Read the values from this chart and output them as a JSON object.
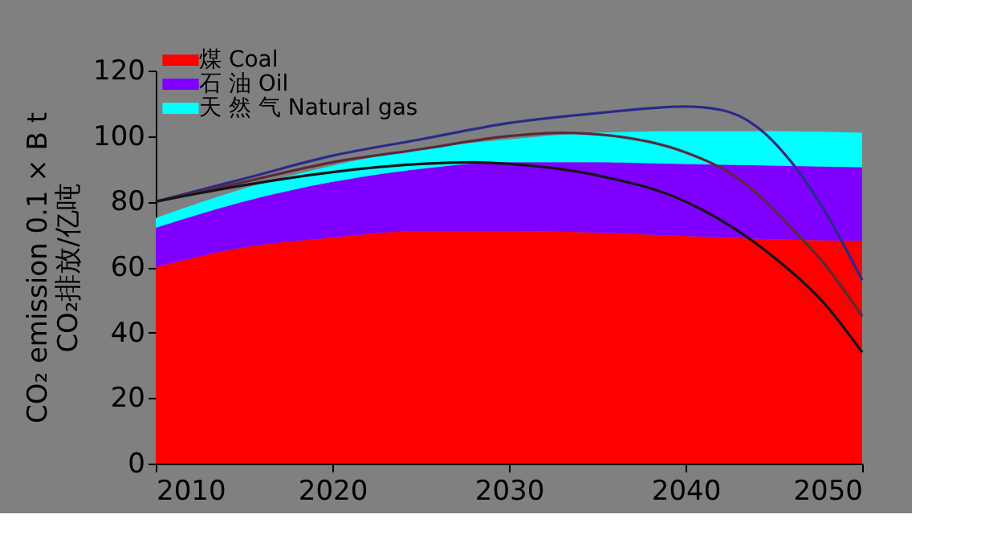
{
  "chart_data": {
    "type": "area",
    "stacked": true,
    "ylabel": "CO₂ emission 0.1 × B t\nCO₂排放/亿吨",
    "x": [
      2010,
      2015,
      2020,
      2025,
      2030,
      2035,
      2040,
      2045,
      2050
    ],
    "xlim": [
      2010,
      2050
    ],
    "xticks": [
      2010,
      2020,
      2030,
      2040,
      2050
    ],
    "ylim": [
      0,
      120
    ],
    "yticks": [
      0,
      20,
      40,
      60,
      80,
      100,
      120
    ],
    "grid": false,
    "legend": "top left",
    "series": [
      {
        "name": "煤   Coal",
        "color": "#ff0000",
        "values": [
          60,
          66,
          69,
          71,
          71,
          70.5,
          69.5,
          68.5,
          68
        ]
      },
      {
        "name": "石 油   Oil",
        "color": "#7f00ff",
        "values": [
          12,
          14,
          17,
          19,
          21,
          21.5,
          22,
          22.5,
          22.5
        ]
      },
      {
        "name": "天 然 气  Natural gas",
        "color": "#00ffff",
        "values": [
          3,
          4,
          5,
          6,
          7,
          9,
          10,
          10.5,
          10.5
        ]
      },
      {
        "type": "line",
        "color": "#2a2a8a",
        "x": [
          2010,
          2015,
          2020,
          2025,
          2030,
          2035,
          2040,
          2042,
          2044,
          2046,
          2048,
          2050
        ],
        "values": [
          80,
          87,
          94,
          99,
          104,
          107,
          109,
          108,
          103,
          92,
          76,
          56
        ]
      },
      {
        "type": "line",
        "color": "#5a2a3a",
        "x": [
          2010,
          2015,
          2020,
          2025,
          2030,
          2033,
          2036,
          2040,
          2043,
          2046,
          2048,
          2050
        ],
        "values": [
          80,
          86,
          92,
          96,
          100,
          101,
          100,
          95,
          87,
          72,
          60,
          45
        ]
      },
      {
        "type": "line",
        "color": "#151515",
        "x": [
          2010,
          2015,
          2020,
          2025,
          2028,
          2030,
          2035,
          2040,
          2045,
          2048,
          2050
        ],
        "values": [
          80,
          85,
          89,
          91.5,
          92,
          91.5,
          88,
          80,
          63,
          48,
          34
        ]
      }
    ]
  }
}
